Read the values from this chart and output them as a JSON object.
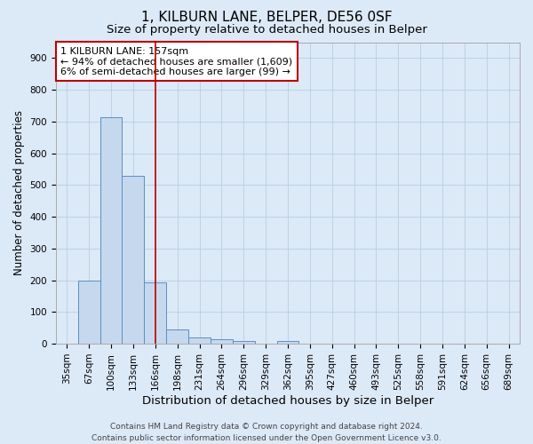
{
  "title1": "1, KILBURN LANE, BELPER, DE56 0SF",
  "title2": "Size of property relative to detached houses in Belper",
  "xlabel": "Distribution of detached houses by size in Belper",
  "ylabel": "Number of detached properties",
  "categories": [
    "35sqm",
    "67sqm",
    "100sqm",
    "133sqm",
    "166sqm",
    "198sqm",
    "231sqm",
    "264sqm",
    "296sqm",
    "329sqm",
    "362sqm",
    "395sqm",
    "427sqm",
    "460sqm",
    "493sqm",
    "525sqm",
    "558sqm",
    "591sqm",
    "624sqm",
    "656sqm",
    "689sqm"
  ],
  "values": [
    0,
    200,
    714,
    530,
    193,
    44,
    20,
    14,
    10,
    0,
    8,
    0,
    0,
    0,
    0,
    0,
    0,
    0,
    0,
    0,
    0
  ],
  "bar_color": "#c5d8ee",
  "bar_edge_color": "#5b8ec4",
  "vline_index": 4,
  "vline_color": "#bb0000",
  "annotation_text": "1 KILBURN LANE: 157sqm\n← 94% of detached houses are smaller (1,609)\n6% of semi-detached houses are larger (99) →",
  "annotation_box_facecolor": "#ffffff",
  "annotation_box_edgecolor": "#bb0000",
  "ylim": [
    0,
    950
  ],
  "yticks": [
    0,
    100,
    200,
    300,
    400,
    500,
    600,
    700,
    800,
    900
  ],
  "footer": "Contains HM Land Registry data © Crown copyright and database right 2024.\nContains public sector information licensed under the Open Government Licence v3.0.",
  "fig_bg_color": "#dce9f7",
  "plot_bg_color": "#dce9f7",
  "grid_color": "#b8cfe0",
  "title1_fontsize": 11,
  "title2_fontsize": 9.5,
  "xlabel_fontsize": 9.5,
  "ylabel_fontsize": 8.5,
  "tick_fontsize": 7.5,
  "footer_fontsize": 6.5,
  "annotation_fontsize": 8
}
